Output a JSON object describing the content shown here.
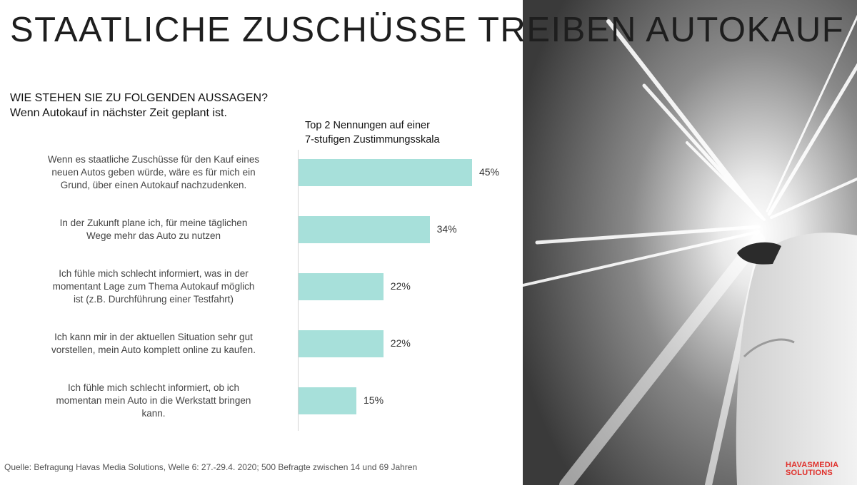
{
  "title": "STAATLICHE ZUSCHÜSSE TREIBEN AUTOKAUF",
  "question": {
    "line1": "WIE STEHEN SIE ZU FOLGENDEN AUSSAGEN?",
    "line2": "Wenn Autokauf in nächster Zeit geplant ist."
  },
  "scale_note": {
    "line1": "Top 2 Nennungen auf einer",
    "line2": "7-stufigen Zustimmungsskala"
  },
  "source": "Quelle: Befragung Havas Media Solutions, Welle 6: 27.-29.4. 2020; 500 Befragte zwischen 14 und 69 Jahren",
  "logo": {
    "line1": "HAVASMEDIA",
    "line2": "SOLUTIONS"
  },
  "colors": {
    "bar": "#a7e0da",
    "logo": "#e0312c"
  },
  "chart_data": {
    "type": "bar",
    "orientation": "horizontal",
    "categories": [
      [
        "Wenn es staatliche Zuschüsse für den Kauf eines",
        "neuen Autos geben würde, wäre es für mich ein",
        "Grund, über einen Autokauf nachzudenken."
      ],
      [
        "In der Zukunft plane ich, für meine täglichen",
        "Wege mehr das Auto zu nutzen"
      ],
      [
        "Ich fühle mich schlecht informiert, was in der",
        "momentant Lage zum Thema Autokauf möglich",
        "ist (z.B. Durchführung einer Testfahrt)"
      ],
      [
        "Ich kann mir in der aktuellen Situation sehr gut",
        "vorstellen, mein Auto komplett online zu kaufen."
      ],
      [
        "Ich fühle mich schlecht informiert, ob ich",
        "momentan mein Auto in die Werkstatt bringen",
        "kann."
      ]
    ],
    "values": [
      45,
      34,
      22,
      22,
      15
    ],
    "value_labels": [
      "45%",
      "34%",
      "22%",
      "22%",
      "15%"
    ],
    "unit": "%"
  }
}
